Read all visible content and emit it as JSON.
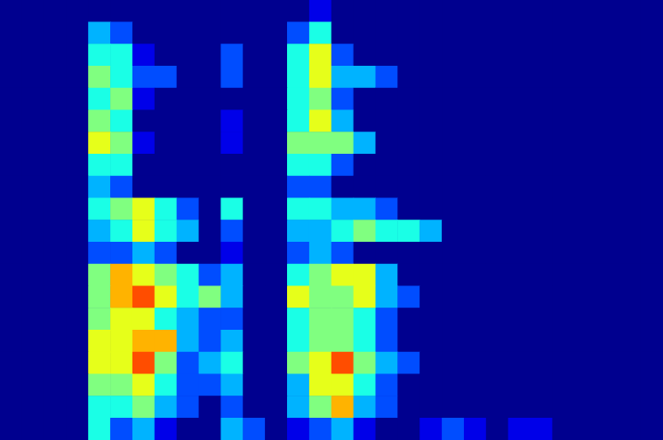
{
  "chart_data": {
    "type": "heatmap",
    "tick_labels": false,
    "grid": false,
    "zlim": [
      0,
      10
    ],
    "cells": [
      [
        0,
        0,
        0,
        0,
        0,
        0,
        0,
        0,
        0,
        0,
        0,
        0,
        0,
        0,
        1,
        0,
        0,
        0,
        0,
        0,
        0,
        0,
        0,
        0,
        0,
        0,
        0,
        0,
        0,
        0
      ],
      [
        0,
        0,
        0,
        0,
        3,
        2,
        0,
        0,
        0,
        0,
        0,
        0,
        0,
        2,
        4,
        0,
        0,
        0,
        0,
        0,
        0,
        0,
        0,
        0,
        0,
        0,
        0,
        0,
        0,
        0
      ],
      [
        0,
        0,
        0,
        0,
        4,
        4,
        1,
        0,
        0,
        0,
        2,
        0,
        0,
        4,
        6,
        2,
        0,
        0,
        0,
        0,
        0,
        0,
        0,
        0,
        0,
        0,
        0,
        0,
        0,
        0
      ],
      [
        0,
        0,
        0,
        0,
        5,
        4,
        2,
        2,
        0,
        0,
        2,
        0,
        0,
        4,
        6,
        3,
        3,
        2,
        0,
        0,
        0,
        0,
        0,
        0,
        0,
        0,
        0,
        0,
        0,
        0
      ],
      [
        0,
        0,
        0,
        0,
        4,
        5,
        1,
        0,
        0,
        0,
        0,
        0,
        0,
        4,
        5,
        2,
        0,
        0,
        0,
        0,
        0,
        0,
        0,
        0,
        0,
        0,
        0,
        0,
        0,
        0
      ],
      [
        0,
        0,
        0,
        0,
        5,
        4,
        0,
        0,
        0,
        0,
        1,
        0,
        0,
        4,
        6,
        3,
        0,
        0,
        0,
        0,
        0,
        0,
        0,
        0,
        0,
        0,
        0,
        0,
        0,
        0
      ],
      [
        0,
        0,
        0,
        0,
        6,
        5,
        1,
        0,
        0,
        0,
        1,
        0,
        0,
        5,
        5,
        5,
        3,
        0,
        0,
        0,
        0,
        0,
        0,
        0,
        0,
        0,
        0,
        0,
        0,
        0
      ],
      [
        0,
        0,
        0,
        0,
        4,
        4,
        0,
        0,
        0,
        0,
        0,
        0,
        0,
        4,
        4,
        2,
        0,
        0,
        0,
        0,
        0,
        0,
        0,
        0,
        0,
        0,
        0,
        0,
        0,
        0
      ],
      [
        0,
        0,
        0,
        0,
        3,
        2,
        0,
        0,
        0,
        0,
        0,
        0,
        0,
        2,
        2,
        0,
        0,
        0,
        0,
        0,
        0,
        0,
        0,
        0,
        0,
        0,
        0,
        0,
        0,
        0
      ],
      [
        0,
        0,
        0,
        0,
        4,
        5,
        6,
        4,
        2,
        0,
        4,
        0,
        0,
        4,
        4,
        3,
        3,
        2,
        0,
        0,
        0,
        0,
        0,
        0,
        0,
        0,
        0,
        0,
        0,
        0
      ],
      [
        0,
        0,
        0,
        0,
        3,
        4,
        6,
        4,
        3,
        0,
        2,
        0,
        0,
        3,
        3,
        4,
        5,
        4,
        4,
        3,
        0,
        0,
        0,
        0,
        0,
        0,
        0,
        0,
        0,
        0
      ],
      [
        0,
        0,
        0,
        0,
        2,
        2,
        3,
        2,
        0,
        0,
        1,
        0,
        0,
        2,
        3,
        2,
        0,
        0,
        0,
        0,
        0,
        0,
        0,
        0,
        0,
        0,
        0,
        0,
        0,
        0
      ],
      [
        0,
        0,
        0,
        0,
        5,
        7,
        6,
        5,
        4,
        2,
        3,
        0,
        0,
        4,
        5,
        6,
        6,
        3,
        0,
        0,
        0,
        0,
        0,
        0,
        0,
        0,
        0,
        0,
        0,
        0
      ],
      [
        0,
        0,
        0,
        0,
        5,
        7,
        8,
        6,
        4,
        5,
        3,
        0,
        0,
        6,
        5,
        5,
        6,
        3,
        2,
        0,
        0,
        0,
        0,
        0,
        0,
        0,
        0,
        0,
        0,
        0
      ],
      [
        0,
        0,
        0,
        0,
        5,
        6,
        6,
        4,
        3,
        2,
        2,
        0,
        0,
        4,
        5,
        5,
        4,
        2,
        0,
        0,
        0,
        0,
        0,
        0,
        0,
        0,
        0,
        0,
        0,
        0
      ],
      [
        0,
        0,
        0,
        0,
        6,
        6,
        7,
        7,
        3,
        2,
        3,
        0,
        0,
        4,
        5,
        5,
        4,
        2,
        0,
        0,
        0,
        0,
        0,
        0,
        0,
        0,
        0,
        0,
        0,
        0
      ],
      [
        0,
        0,
        0,
        0,
        6,
        6,
        8,
        5,
        2,
        3,
        4,
        0,
        0,
        5,
        6,
        8,
        5,
        3,
        2,
        0,
        0,
        0,
        0,
        0,
        0,
        0,
        0,
        0,
        0,
        0
      ],
      [
        0,
        0,
        0,
        0,
        5,
        5,
        6,
        4,
        2,
        2,
        3,
        0,
        0,
        3,
        6,
        6,
        4,
        2,
        0,
        0,
        0,
        0,
        0,
        0,
        0,
        0,
        0,
        0,
        0,
        0
      ],
      [
        0,
        0,
        0,
        0,
        4,
        4,
        5,
        3,
        2,
        0,
        2,
        0,
        0,
        3,
        5,
        7,
        3,
        2,
        0,
        0,
        0,
        0,
        0,
        0,
        0,
        0,
        0,
        0,
        0,
        0
      ],
      [
        0,
        0,
        0,
        0,
        4,
        2,
        3,
        1,
        0,
        0,
        3,
        2,
        0,
        1,
        2,
        3,
        1,
        0,
        0,
        1,
        2,
        1,
        0,
        1,
        1,
        0,
        0,
        0,
        0,
        0
      ]
    ]
  }
}
